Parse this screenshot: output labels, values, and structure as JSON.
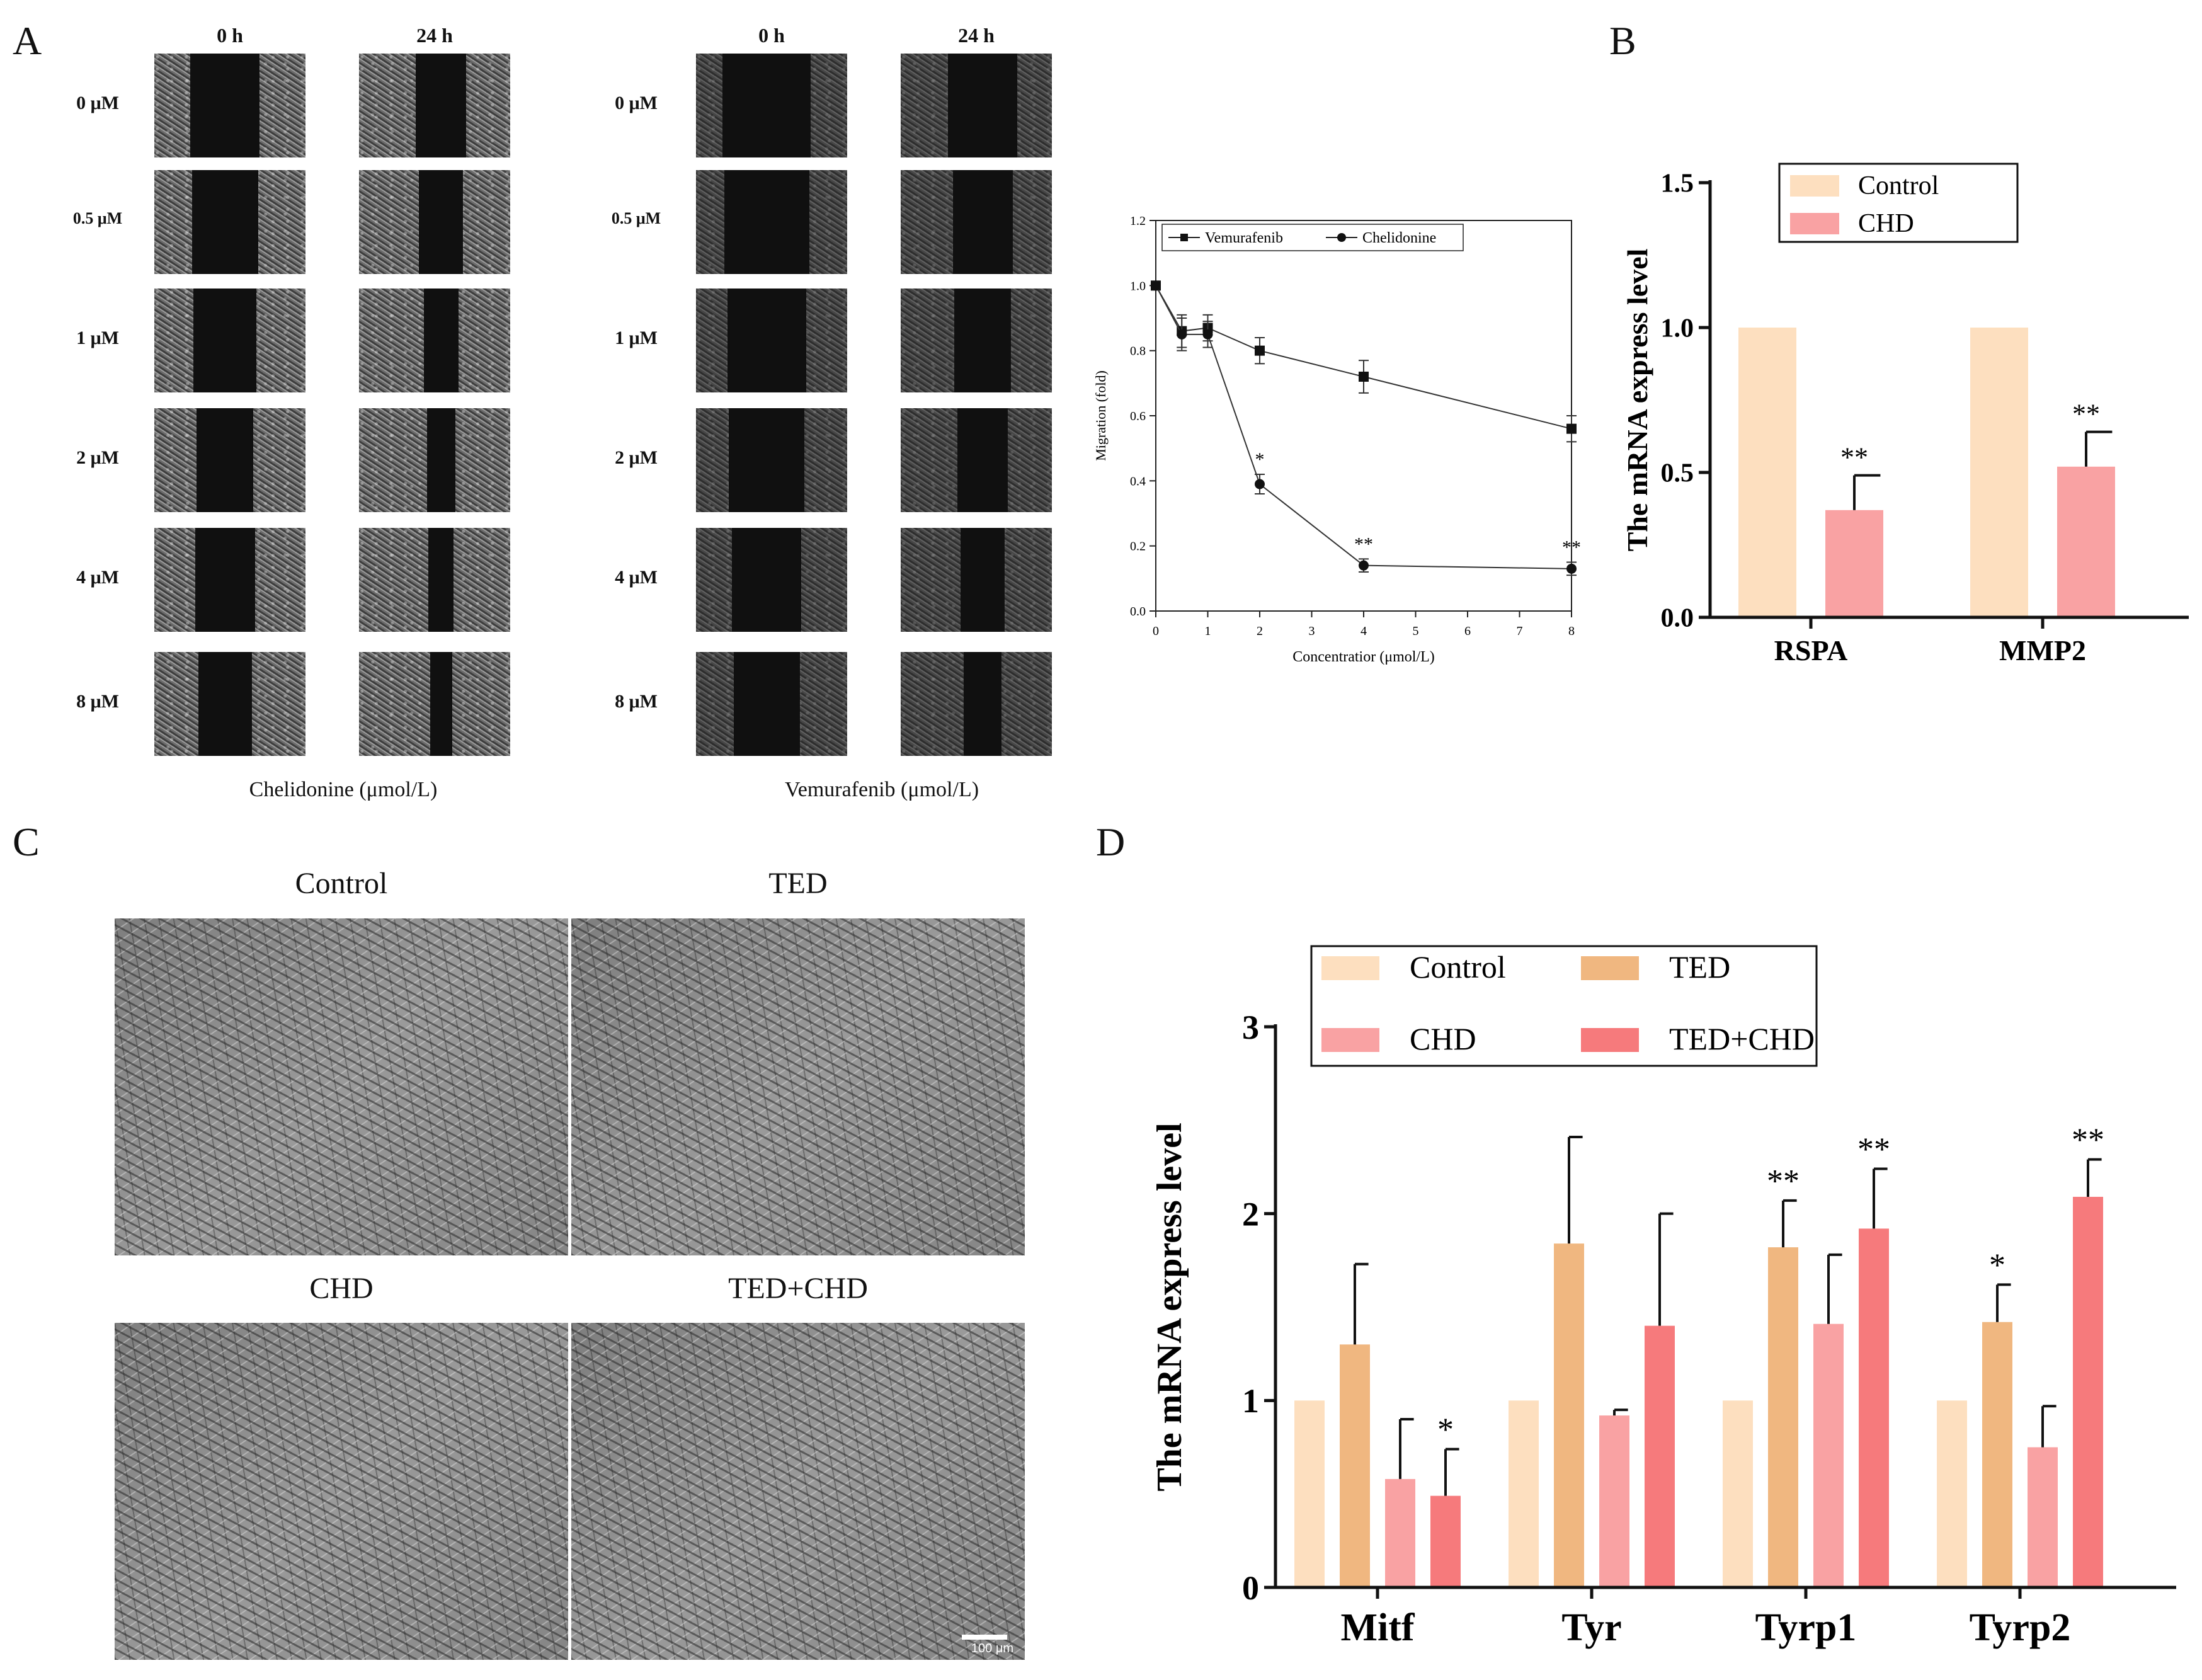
{
  "panelA": {
    "letter": "A",
    "time_labels": [
      "0 h",
      "24 h"
    ],
    "dose_labels": [
      "0 μM",
      "0.5 μM",
      "1 μM",
      "2 μM",
      "4 μM",
      "8 μM"
    ],
    "caption_left": "Chelidonine (μmol/L)",
    "caption_right": "Vemurafenib (μmol/L)"
  },
  "panelB": {
    "letter": "B"
  },
  "panelC": {
    "letter": "C",
    "titles": [
      "Control",
      "TED",
      "CHD",
      "TED+CHD"
    ],
    "scale_label": "100 μm"
  },
  "panelD": {
    "letter": "D"
  },
  "colors": {
    "control": "#fddfbf",
    "ted": "#f0b780",
    "chd": "#f9a2a3",
    "ted_chd": "#f67a7c",
    "axis": "#111111"
  },
  "chart_data": [
    {
      "id": "migration",
      "type": "line",
      "xlabel": "Concentratior (μmol/L)",
      "ylabel": "Migration (fold)",
      "xlim": [
        0,
        8
      ],
      "ylim": [
        0,
        1.2
      ],
      "xticks": [
        0,
        1,
        2,
        3,
        4,
        5,
        6,
        7,
        8
      ],
      "yticks": [
        0.0,
        0.2,
        0.4,
        0.6,
        0.8,
        1.0,
        1.2
      ],
      "legend": "top",
      "series": [
        {
          "name": "Vemurafenib",
          "marker": "square",
          "x": [
            0,
            0.5,
            1,
            2,
            4,
            8
          ],
          "y": [
            1.0,
            0.86,
            0.87,
            0.8,
            0.72,
            0.56
          ],
          "err": [
            0.0,
            0.05,
            0.04,
            0.04,
            0.05,
            0.04
          ],
          "sig": [
            "",
            "",
            "",
            "",
            "",
            ""
          ]
        },
        {
          "name": "Chelidonine",
          "marker": "circle",
          "x": [
            0,
            0.5,
            1,
            2,
            4,
            8
          ],
          "y": [
            1.0,
            0.85,
            0.85,
            0.39,
            0.14,
            0.13
          ],
          "err": [
            0.0,
            0.05,
            0.04,
            0.03,
            0.02,
            0.02
          ],
          "sig": [
            "",
            "",
            "",
            "*",
            "**",
            "**"
          ]
        }
      ]
    },
    {
      "id": "mrna_b",
      "type": "bar",
      "ylabel": "The mRNA express level",
      "ylim": [
        0,
        1.5
      ],
      "yticks": [
        0.0,
        0.5,
        1.0,
        1.5
      ],
      "categories": [
        "RSPA",
        "MMP2"
      ],
      "legend": "top-left",
      "series": [
        {
          "name": "Control",
          "color": "#fddfbf",
          "values": [
            1.0,
            1.0
          ],
          "err": [
            0,
            0
          ],
          "sig": [
            "",
            ""
          ]
        },
        {
          "name": "CHD",
          "color": "#f9a2a3",
          "values": [
            0.37,
            0.52
          ],
          "err": [
            0.12,
            0.12
          ],
          "sig": [
            "**",
            "**"
          ]
        }
      ]
    },
    {
      "id": "mrna_d",
      "type": "bar",
      "ylabel": "The mRNA express level",
      "ylim": [
        0,
        3
      ],
      "yticks": [
        0,
        1,
        2,
        3
      ],
      "categories": [
        "Mitf",
        "Tyr",
        "Tyrp1",
        "Tyrp2"
      ],
      "legend": "top",
      "series": [
        {
          "name": "Control",
          "color": "#fddfbf",
          "values": [
            1.0,
            1.0,
            1.0,
            1.0
          ],
          "err": [
            0,
            0,
            0,
            0
          ],
          "sig": [
            "",
            "",
            "",
            ""
          ]
        },
        {
          "name": "TED",
          "color": "#f0b780",
          "values": [
            1.3,
            1.84,
            1.82,
            1.42
          ],
          "err": [
            0.43,
            0.57,
            0.25,
            0.2
          ],
          "sig": [
            "",
            "",
            "**",
            "*"
          ]
        },
        {
          "name": "CHD",
          "color": "#f9a2a3",
          "values": [
            0.58,
            0.92,
            1.41,
            0.75
          ],
          "err": [
            0.32,
            0.03,
            0.37,
            0.22
          ],
          "sig": [
            "",
            "",
            "",
            ""
          ]
        },
        {
          "name": "TED+CHD",
          "color": "#f67a7c",
          "values": [
            0.49,
            1.4,
            1.92,
            2.09
          ],
          "err": [
            0.25,
            0.6,
            0.32,
            0.2
          ],
          "sig": [
            "*",
            "",
            "**",
            "**"
          ]
        }
      ]
    }
  ]
}
